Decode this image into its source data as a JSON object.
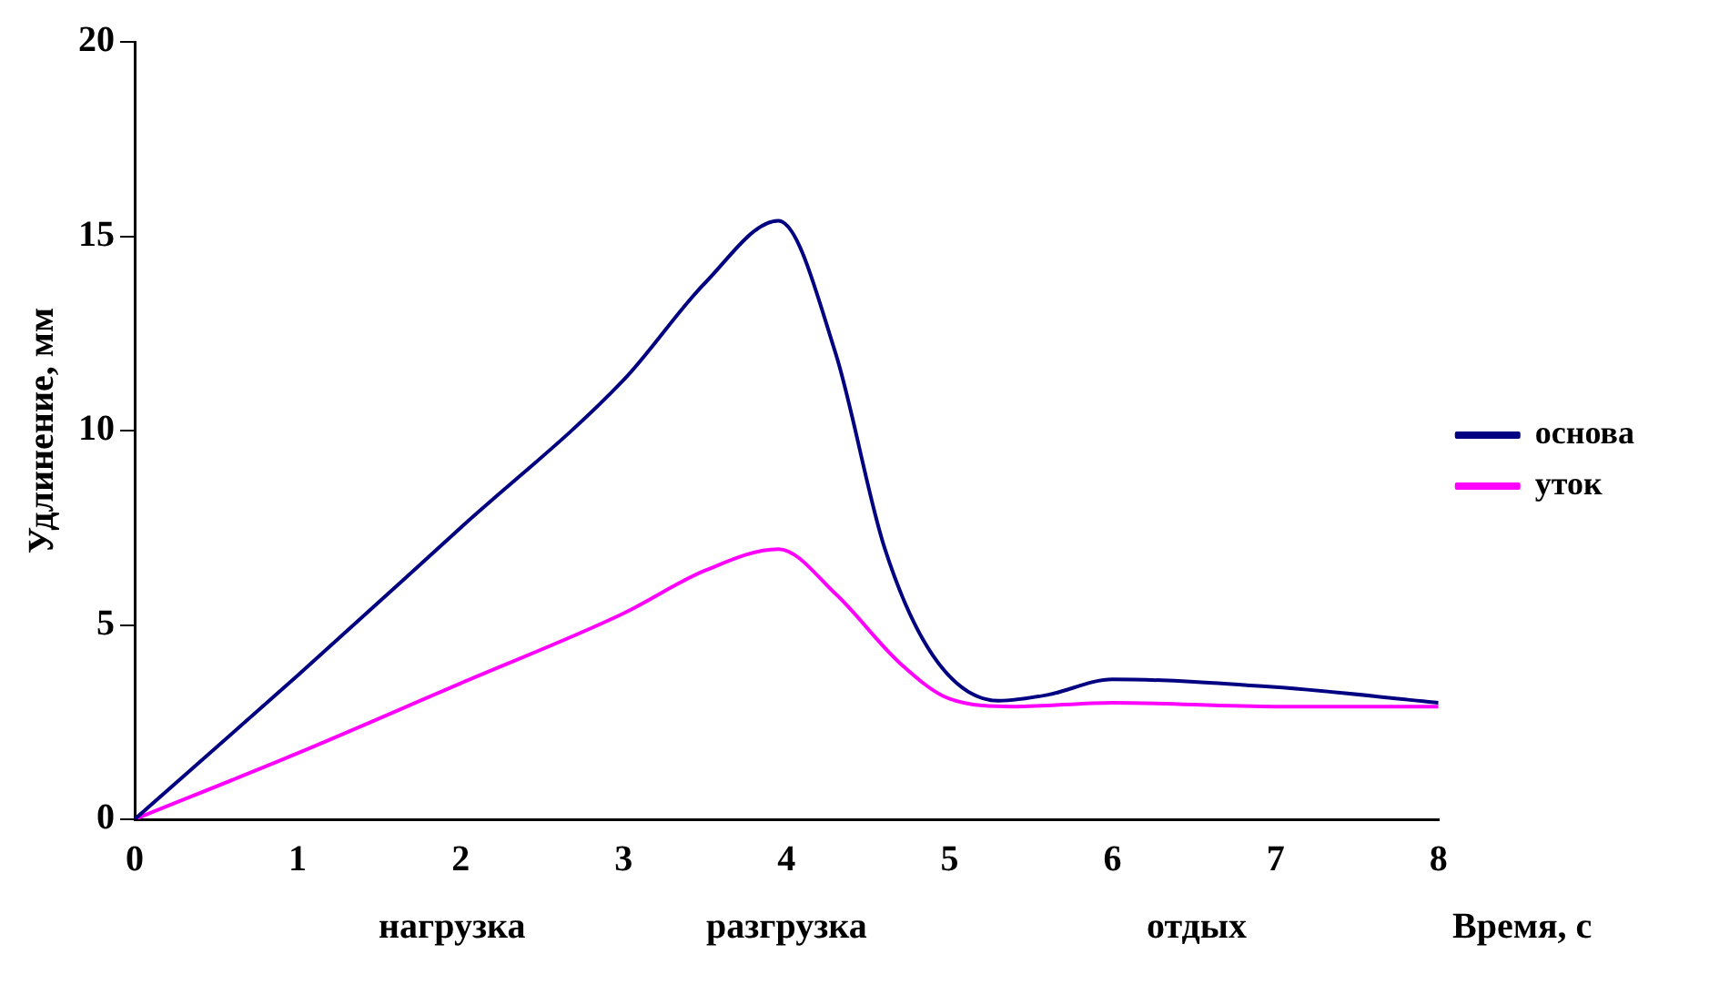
{
  "chart_data": {
    "type": "line",
    "ylabel": "Удлинение, мм",
    "xlabel": "Время, с",
    "annotations": [
      "нагрузка",
      "разгрузка",
      "отдых"
    ],
    "xlim": [
      0,
      8
    ],
    "xticks": [
      0,
      1,
      2,
      3,
      4,
      5,
      6,
      7,
      8
    ],
    "ylim": [
      0,
      20
    ],
    "yticks": [
      0,
      5,
      10,
      15,
      20
    ],
    "grid": false,
    "legend": "right",
    "marker": "none",
    "line_style": "solid",
    "series": [
      {
        "name": "основа",
        "color": "#000080",
        "x": [
          0,
          1,
          2,
          3,
          3.5,
          3.95,
          4.3,
          4.6,
          4.9,
          5.3,
          5.6,
          6,
          7,
          8
        ],
        "values": [
          0,
          3.7,
          7.5,
          11.3,
          13.8,
          15.4,
          12,
          7,
          4.2,
          3.05,
          3.2,
          3.6,
          3.4,
          3.0
        ]
      },
      {
        "name": "уток",
        "color": "#ff00ff",
        "x": [
          0,
          1,
          2,
          3,
          3.5,
          3.95,
          4.3,
          4.7,
          5,
          5.4,
          6,
          7,
          8
        ],
        "values": [
          0,
          1.7,
          3.5,
          5.3,
          6.4,
          6.95,
          5.8,
          4,
          3.1,
          2.9,
          3.0,
          2.9,
          2.9
        ]
      }
    ]
  }
}
